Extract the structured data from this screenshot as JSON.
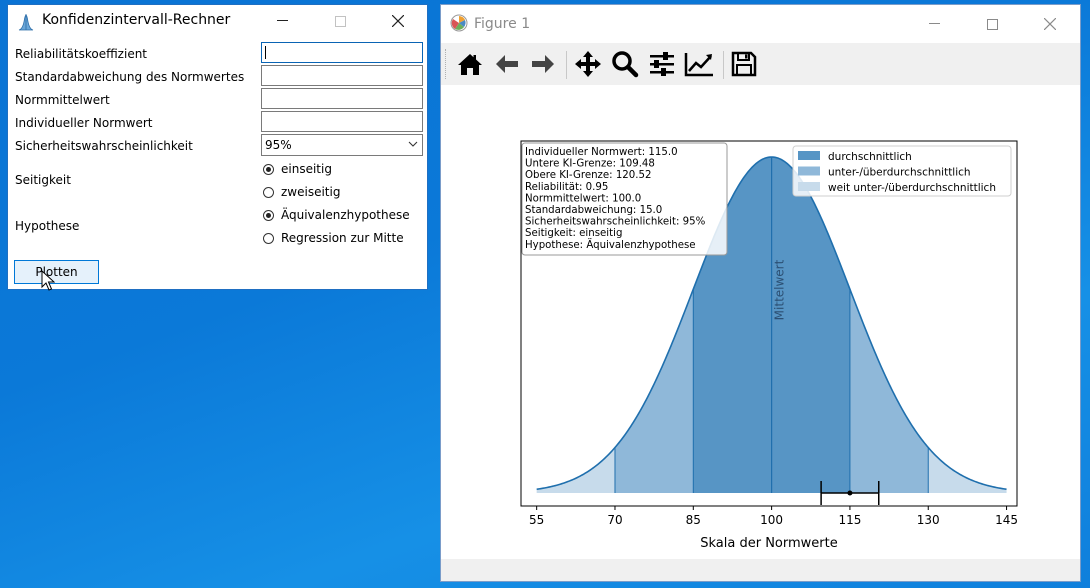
{
  "calculator": {
    "title": "Konfidenzintervall-Rechner",
    "fields": [
      {
        "label": "Reliabilitätskoeffizient",
        "value": ""
      },
      {
        "label": "Standardabweichung des Normwertes",
        "value": ""
      },
      {
        "label": "Normmittelwert",
        "value": ""
      },
      {
        "label": "Individueller Normwert",
        "value": ""
      }
    ],
    "confidence": {
      "label": "Sicherheitswahrscheinlichkeit",
      "selected": "95%"
    },
    "sidedness": {
      "label": "Seitigkeit",
      "options": [
        "einseitig",
        "zweiseitig"
      ],
      "selected": "einseitig"
    },
    "hypothesis": {
      "label": "Hypothese",
      "options": [
        "Äquivalenzhypothese",
        "Regression zur Mitte"
      ],
      "selected": "Äquivalenzhypothese"
    },
    "plot_button": "Plotten"
  },
  "figure": {
    "title": "Figure 1",
    "toolbar": [
      "home-icon",
      "back-arrow-icon",
      "forward-arrow-icon",
      "pan-icon",
      "zoom-icon",
      "subplots-icon",
      "edit-axis-icon",
      "save-icon"
    ]
  },
  "chart_data": {
    "type": "area",
    "title": "",
    "xlabel": "Skala der Normwerte",
    "ylabel": "",
    "xlim": [
      52,
      147
    ],
    "xticks": [
      55,
      70,
      85,
      100,
      115,
      130,
      145
    ],
    "distribution": {
      "mean": 100,
      "sd": 15,
      "range": [
        55,
        145
      ]
    },
    "bands": [
      {
        "name": "durchschnittlich",
        "from": 85,
        "to": 115,
        "color": "#5795c5"
      },
      {
        "name": "unter-/überdurchschnittlich",
        "from": 70,
        "to": 130,
        "color": "#8fb8d9"
      },
      {
        "name": "weit unter-/überdurchschnittlich",
        "from": 55,
        "to": 145,
        "color": "#c7dbeb"
      }
    ],
    "curve_color": "#1f6fad",
    "mean_label": "Mittelwert",
    "mean_line_x": 100,
    "confidence_interval": {
      "point": 115.0,
      "lower": 109.48,
      "upper": 120.52
    },
    "legend_position": "top-right",
    "info_box": [
      "Individueller Normwert: 115.0",
      "Untere KI-Grenze: 109.48",
      "Obere KI-Grenze: 120.52",
      "Reliabilität: 0.95",
      "Normmittelwert: 100.0",
      "Standardabweichung: 15.0",
      "Sicherheitswahrscheinlichkeit: 95%",
      "Seitigkeit: einseitig",
      "Hypothese: Äquivalenzhypothese"
    ]
  }
}
